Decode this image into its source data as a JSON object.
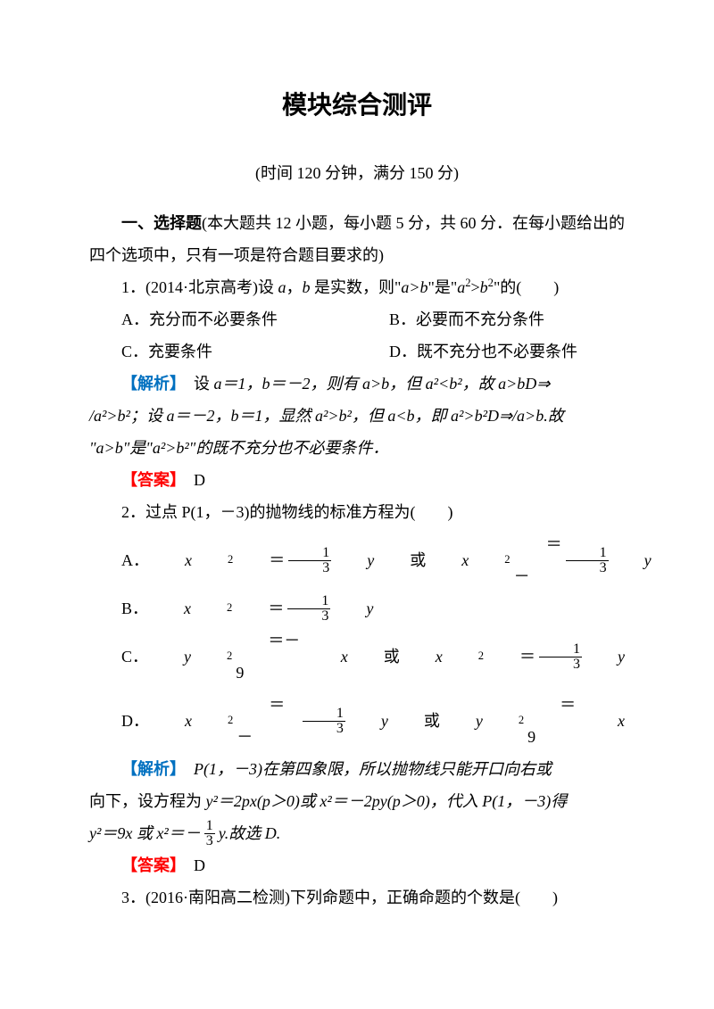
{
  "title": "模块综合测评",
  "subtitle": "(时间 120 分钟，满分 150 分)",
  "section1_label": "一、选择题",
  "section1_desc": "(本大题共 12 小题，每小题 5 分，共 60 分．在每小题给出的四个选项中，只有一项是符合题目要求的)",
  "q1_prefix": "1．(2014·北京高考)设 ",
  "q1_mid1": "a",
  "q1_mid2": "，",
  "q1_mid3": "b",
  "q1_mid4": " 是实数，则\"",
  "q1_mid5": "a>b",
  "q1_mid6": "\"是\"",
  "q1_mid7": "a",
  "q1_sup2": "2",
  "q1_mid8": ">",
  "q1_mid9": "b",
  "q1_mid10": "\"的(",
  "q1_end": ")",
  "q1_optA": "A．充分而不必要条件",
  "q1_optB": "B．必要而不充分条件",
  "q1_optC": "C．充要条件",
  "q1_optD": "D．既不充分也不必要条件",
  "analysis_label": "【解析】",
  "q1_analysis_textA": "设 ",
  "q1_a_eq": "a＝1，b＝－2，则有 a>b，但 a²<b²，故 a>bD⇒",
  "q1_analysis_line2": "/a²>b²；设 a＝－2，b＝1，显然 a²>b²，但 a<b，即 a²>b²D⇒/a>b.故",
  "q1_analysis_line3": "\"a>b\"是\"a²>b²\"的既不充分也不必要条件．",
  "answer_label": "【答案】",
  "q1_answer": "D",
  "q2_text": "2．过点 P(1，－3)的抛物线的标准方程为(",
  "q2_end": ")",
  "q2_optA_pre": "A．",
  "q2_optA_a": "x",
  "q2_optA_b": "＝",
  "q2_optA_c": "y",
  "q2_optA_d": " 或 ",
  "q2_optA_e": "x",
  "q2_optA_f": "＝－",
  "q2_optA_g": "y",
  "q2_optB_pre": "B．",
  "q2_optB_a": "x",
  "q2_optB_b": "＝",
  "q2_optB_c": "y",
  "q2_optC_pre": "C．",
  "q2_optC_a": "y",
  "q2_optC_b": "＝－9",
  "q2_optC_c": "x",
  "q2_optC_d": " 或 ",
  "q2_optC_e": "x",
  "q2_optC_f": "＝",
  "q2_optC_g": "y",
  "q2_optD_pre": "D．",
  "q2_optD_a": "x",
  "q2_optD_b": "＝－",
  "q2_optD_c": "y",
  "q2_optD_d": " 或 ",
  "q2_optD_e": "y",
  "q2_optD_f": "＝9",
  "q2_optD_g": "x",
  "q2_analysis_1": "P(1，－3)在第四象限，所以抛物线只能开口向右或",
  "q2_analysis_2a": "向下，设方程为 ",
  "q2_analysis_2b": "y²＝2px(p＞0)或 x²＝－2py(p＞0)，代入 P(1，－3)得",
  "q2_analysis_3a": "y²＝9x 或 x²＝－",
  "q2_analysis_3b": "y.故选 D.",
  "q2_answer": "D",
  "q3_text": "3．(2016·南阳高二检测)下列命题中，正确命题的个数是(",
  "q3_end": ")",
  "frac_1": "1",
  "frac_3": "3",
  "sq": "2",
  "colors": {
    "analysis": "#0070c0",
    "answer": "#ff0000",
    "text": "#000000",
    "bg": "#ffffff"
  },
  "fontsize_title": 28,
  "fontsize_body": 18
}
